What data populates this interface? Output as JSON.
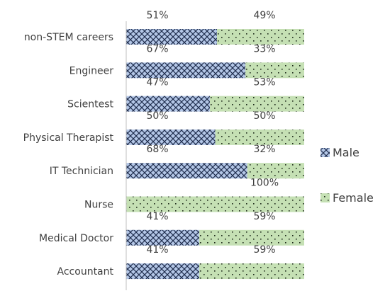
{
  "chart_data": {
    "type": "bar",
    "orientation": "horizontal",
    "stacked": true,
    "percent_stacked": true,
    "categories": [
      "non-STEM careers",
      "Engineer",
      "Scientest",
      "Physical Therapist",
      "IT Technician",
      "Nurse",
      "Medical Doctor",
      "Accountant"
    ],
    "series": [
      {
        "name": "Male",
        "values": [
          51,
          67,
          47,
          50,
          68,
          0,
          41,
          41
        ],
        "labels": [
          "51%",
          "67%",
          "47%",
          "50%",
          "68%",
          "",
          "41%",
          "41%"
        ],
        "color": "#b4c7e7",
        "pattern": "crosshatch"
      },
      {
        "name": "Female",
        "values": [
          49,
          33,
          53,
          50,
          32,
          100,
          59,
          59
        ],
        "labels": [
          "49%",
          "33%",
          "53%",
          "50%",
          "32%",
          "100%",
          "59%",
          "59%"
        ],
        "color": "#c5e0b4",
        "pattern": "dots"
      }
    ],
    "xlim": [
      0,
      100
    ],
    "grid": false,
    "legend_position": "right"
  }
}
